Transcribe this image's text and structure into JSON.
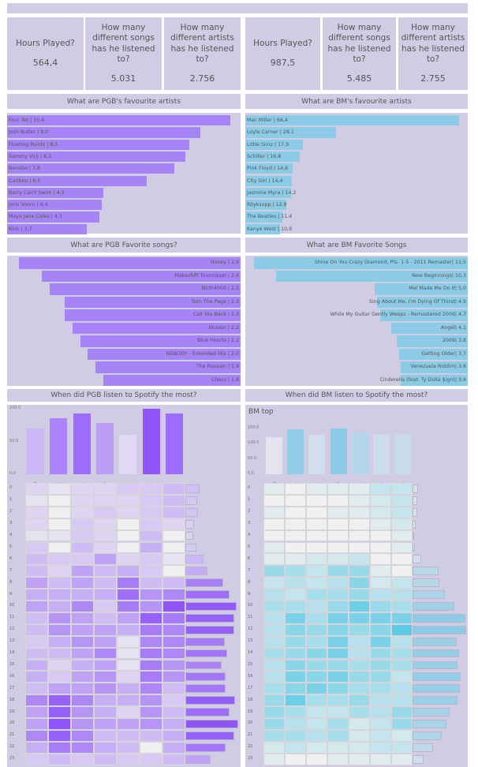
{
  "kpis": {
    "pgb": [
      {
        "question": "Hours Played?",
        "value": "564,4"
      },
      {
        "question": "How many different songs has he listened to?",
        "value": "5.031"
      },
      {
        "question": "How many different artists has he listened to?",
        "value": "2.756"
      }
    ],
    "bm": [
      {
        "question": "Hours Played?",
        "value": "987,5"
      },
      {
        "question": "How many different songs has he listened to?",
        "value": "5.485"
      },
      {
        "question": "How many different artists has he listened to?",
        "value": "2.755"
      }
    ]
  },
  "colors": {
    "panel_bg": "#cfcce3",
    "pgb_accent": "#a684f5",
    "bm_accent": "#8ccbe6"
  },
  "chart_data": [
    {
      "id": "pgb_artists",
      "type": "bar",
      "orientation": "horizontal",
      "title": "What are PGB's favourite artists",
      "categories": [
        "Four Tet",
        "Josh Butler",
        "Floating Points",
        "Sammy Virji",
        "Bonobo",
        "Caribou",
        "Barry Can't Swim",
        "Joris Voorn",
        "Maya Jane Coles",
        "Kink"
      ],
      "values": [
        10.4,
        9.0,
        8.5,
        8.3,
        7.8,
        6.5,
        4.5,
        4.4,
        4.3,
        3.7
      ],
      "labels": [
        "Four Tet | 10,4",
        "Josh Butler | 9,0",
        "Floating Points | 8,5",
        "Sammy Virji | 8,3",
        "Bonobo | 7,8",
        "Caribou | 6,5",
        "Barry Can't Swim | 4,5",
        "Joris Voorn | 4,4",
        "Maya Jane Coles | 4,3",
        "Kink | 3,7"
      ]
    },
    {
      "id": "bm_artists",
      "type": "bar",
      "orientation": "horizontal",
      "title": "What are BM's favourite artists",
      "categories": [
        "Mac Miller",
        "Loyle Carner",
        "Little Simz",
        "Schiller",
        "Pink Floyd",
        "City Girl",
        "Jasmine Myra",
        "Röyksopp",
        "The Beatles",
        "Kanye West"
      ],
      "values": [
        66.4,
        28.1,
        17.9,
        16.8,
        14.6,
        14.4,
        14.2,
        12.8,
        11.4,
        10.9
      ],
      "labels": [
        "Mac Miller | 66,4",
        "Loyle Carner | 28,1",
        "Little Simz | 17,9",
        "Schiller | 16,8",
        "Pink Floyd | 14,6",
        "City Girl | 14,4",
        "Jasmine Myra | 14,2",
        "Röyksopp | 12,8",
        "The Beatles | 11,4",
        "Kanye West | 10,9"
      ]
    },
    {
      "id": "pgb_songs",
      "type": "bar",
      "orientation": "horizontal-right",
      "title": "What are PGB Favorite songs?",
      "categories": [
        "Honey",
        "Makeshift Tourniquet",
        "Birth4000",
        "Turn The Page",
        "Call You Back",
        "Illusion",
        "Blue Hearts",
        "NOBODY - Extended Mix",
        "The Russian",
        "Chess"
      ],
      "values": [
        2.9,
        2.6,
        2.5,
        2.3,
        2.3,
        2.2,
        2.1,
        2.0,
        1.9,
        1.8
      ],
      "labels": [
        "Honey | 2,9",
        "Makeshift Tourniquet | 2,6",
        "Birth4000 | 2,5",
        "Turn The Page | 2,3",
        "Call You Back | 2,3",
        "Illusion | 2,2",
        "Blue Hearts | 2,1",
        "NOBODY - Extended Mix | 2,0",
        "The Russian | 1,9",
        "Chess | 1,8"
      ]
    },
    {
      "id": "bm_songs",
      "type": "bar",
      "orientation": "horizontal-right",
      "title": "What are BM Favorite Songs",
      "categories": [
        "Shine On You Crazy Diamond, Pts. 1-5 - 2011 Remaster",
        "New Beginnings",
        "Mel Made Me Do It",
        "Sing About Me, I'm Dying Of Thirst",
        "While My Guitar Gently Weeps - Remastered 2009",
        "Angel",
        "2009",
        "Getting Older",
        "Venezuela Riddim",
        "Cinderella (feat. Ty Dolla $ign)"
      ],
      "values": [
        11.5,
        10.3,
        5.0,
        4.9,
        4.7,
        4.1,
        3.8,
        3.7,
        3.6,
        3.6
      ],
      "labels": [
        "Shine On You Crazy Diamond, Pts. 1-5 - 2011 Remaster| 11,5",
        "New Beginnings| 10,3",
        "Mel Made Me Do It| 5,0",
        "Sing About Me, I'm Dying Of Thirst| 4,9",
        "While My Guitar Gently Weeps - Remastered 2009| 4,7",
        "Angel| 4,1",
        "2009| 3,8",
        "Getting Older| 3,7",
        "Venezuela Riddim| 3,6",
        "Cinderella (feat. Ty Dolla $ign)| 3,6"
      ]
    },
    {
      "id": "pgb_weekday",
      "type": "bar",
      "title": "When did PGB listen to Spotify the most?",
      "categories": [
        "Mo.",
        "Di.",
        "Mi.",
        "Do.",
        "Fr.",
        "Sa.",
        "So."
      ],
      "values": [
        70,
        86,
        93,
        78,
        60,
        100,
        93
      ],
      "yticks": [
        "0.0",
        "50.0",
        "100.0"
      ],
      "ylim": [
        0,
        100
      ]
    },
    {
      "id": "bm_weekday",
      "type": "bar",
      "title": "When did BM listen to Spotify the most?",
      "subtitle": "BM top",
      "categories": [
        "Mo.",
        "Di.",
        "Mi.",
        "Do.",
        "Fr.",
        "Sa.",
        "So."
      ],
      "values": [
        122,
        148,
        128,
        150,
        137,
        130,
        131
      ],
      "yticks": [
        "0.0",
        "50.0",
        "100.0",
        "150.0"
      ],
      "ylim": [
        0,
        155
      ]
    },
    {
      "id": "pgb_heatmap",
      "type": "heatmap",
      "xcategories": [
        "Mo.",
        "Di.",
        "Mi.",
        "Do.",
        "Fr.",
        "Sa.",
        "So."
      ],
      "ycategories": [
        "0",
        "1",
        "2",
        "3",
        "4",
        "5",
        "6",
        "7",
        "8",
        "9",
        "10",
        "11",
        "12",
        "13",
        "14",
        "15",
        "16",
        "17",
        "18",
        "19",
        "20",
        "21",
        "22",
        "23"
      ],
      "values": [
        [
          2,
          1,
          2,
          2,
          3,
          3,
          4
        ],
        [
          1,
          0,
          2,
          2,
          2,
          3,
          4
        ],
        [
          2,
          0,
          2,
          3,
          2,
          3,
          4
        ],
        [
          2,
          0,
          3,
          2,
          0,
          3,
          2
        ],
        [
          1,
          1,
          3,
          2,
          0,
          4,
          0
        ],
        [
          3,
          0,
          4,
          2,
          0,
          5,
          0
        ],
        [
          4,
          3,
          3,
          6,
          2,
          3,
          1
        ],
        [
          4,
          2,
          6,
          4,
          5,
          3,
          0
        ],
        [
          6,
          4,
          6,
          4,
          9,
          4,
          4
        ],
        [
          5,
          5,
          5,
          5,
          10,
          7,
          8
        ],
        [
          6,
          5,
          8,
          3,
          9,
          7,
          12
        ],
        [
          4,
          7,
          6,
          4,
          6,
          11,
          9
        ],
        [
          4,
          7,
          6,
          6,
          5,
          9,
          8
        ],
        [
          3,
          5,
          7,
          6,
          1,
          8,
          8
        ],
        [
          4,
          4,
          6,
          8,
          1,
          9,
          8
        ],
        [
          5,
          2,
          5,
          6,
          1,
          9,
          7
        ],
        [
          5,
          3,
          6,
          7,
          2,
          9,
          7
        ],
        [
          4,
          6,
          6,
          7,
          5,
          8,
          4
        ],
        [
          8,
          11,
          8,
          5,
          5,
          7,
          3
        ],
        [
          6,
          11,
          7,
          5,
          2,
          7,
          4
        ],
        [
          6,
          12,
          7,
          6,
          6,
          7,
          5
        ],
        [
          8,
          11,
          8,
          4,
          4,
          4,
          5
        ],
        [
          5,
          9,
          8,
          5,
          4,
          0,
          5
        ],
        [
          3,
          4,
          3,
          4,
          3,
          3,
          4
        ]
      ],
      "row_totals": [
        18,
        15,
        16,
        11,
        10,
        14,
        23,
        28,
        49,
        57,
        66,
        63,
        63,
        51,
        54,
        47,
        52,
        52,
        64,
        57,
        68,
        63,
        52,
        32
      ]
    },
    {
      "id": "bm_heatmap",
      "type": "heatmap",
      "xcategories": [
        "Mo.",
        "Di.",
        "Mi.",
        "Do.",
        "Fr.",
        "Sa.",
        "So."
      ],
      "ycategories": [
        "0",
        "1",
        "2",
        "3",
        "4",
        "5",
        "6",
        "7",
        "8",
        "9",
        "10",
        "11",
        "12",
        "13",
        "14",
        "15",
        "16",
        "17",
        "18",
        "19",
        "20",
        "21",
        "22",
        "23"
      ],
      "values": [
        [
          1,
          0,
          1,
          1,
          1,
          3,
          3
        ],
        [
          0,
          0,
          0,
          0,
          1,
          2,
          3
        ],
        [
          1,
          0,
          0,
          1,
          1,
          2,
          3
        ],
        [
          0,
          0,
          0,
          0,
          0,
          1,
          2
        ],
        [
          0,
          0,
          0,
          0,
          0,
          0,
          1
        ],
        [
          1,
          0,
          0,
          0,
          0,
          0,
          1
        ],
        [
          1,
          1,
          2,
          2,
          3,
          0,
          0
        ],
        [
          6,
          5,
          3,
          6,
          6,
          1,
          0
        ],
        [
          3,
          4,
          3,
          4,
          7,
          2,
          3
        ],
        [
          4,
          3,
          5,
          5,
          6,
          4,
          4
        ],
        [
          5,
          5,
          4,
          6,
          9,
          6,
          5
        ],
        [
          4,
          8,
          5,
          8,
          8,
          8,
          8
        ],
        [
          4,
          7,
          6,
          7,
          6,
          7,
          10
        ],
        [
          4,
          6,
          5,
          8,
          4,
          8,
          4
        ],
        [
          5,
          6,
          7,
          8,
          4,
          6,
          5
        ],
        [
          4,
          7,
          6,
          6,
          5,
          6,
          5
        ],
        [
          4,
          8,
          7,
          8,
          6,
          6,
          3
        ],
        [
          5,
          7,
          8,
          7,
          5,
          5,
          4
        ],
        [
          6,
          9,
          5,
          5,
          6,
          4,
          4
        ],
        [
          6,
          5,
          3,
          3,
          5,
          4,
          6
        ],
        [
          6,
          4,
          3,
          5,
          2,
          3,
          6
        ],
        [
          5,
          5,
          4,
          5,
          2,
          3,
          2
        ],
        [
          2,
          3,
          2,
          2,
          2,
          3,
          3
        ],
        [
          1,
          0,
          0,
          1,
          1,
          1,
          1
        ]
      ],
      "row_totals": [
        7,
        6,
        6,
        4,
        2,
        3,
        11,
        33,
        35,
        42,
        54,
        68,
        69,
        57,
        60,
        58,
        62,
        61,
        58,
        48,
        44,
        38,
        26,
        14
      ]
    }
  ]
}
